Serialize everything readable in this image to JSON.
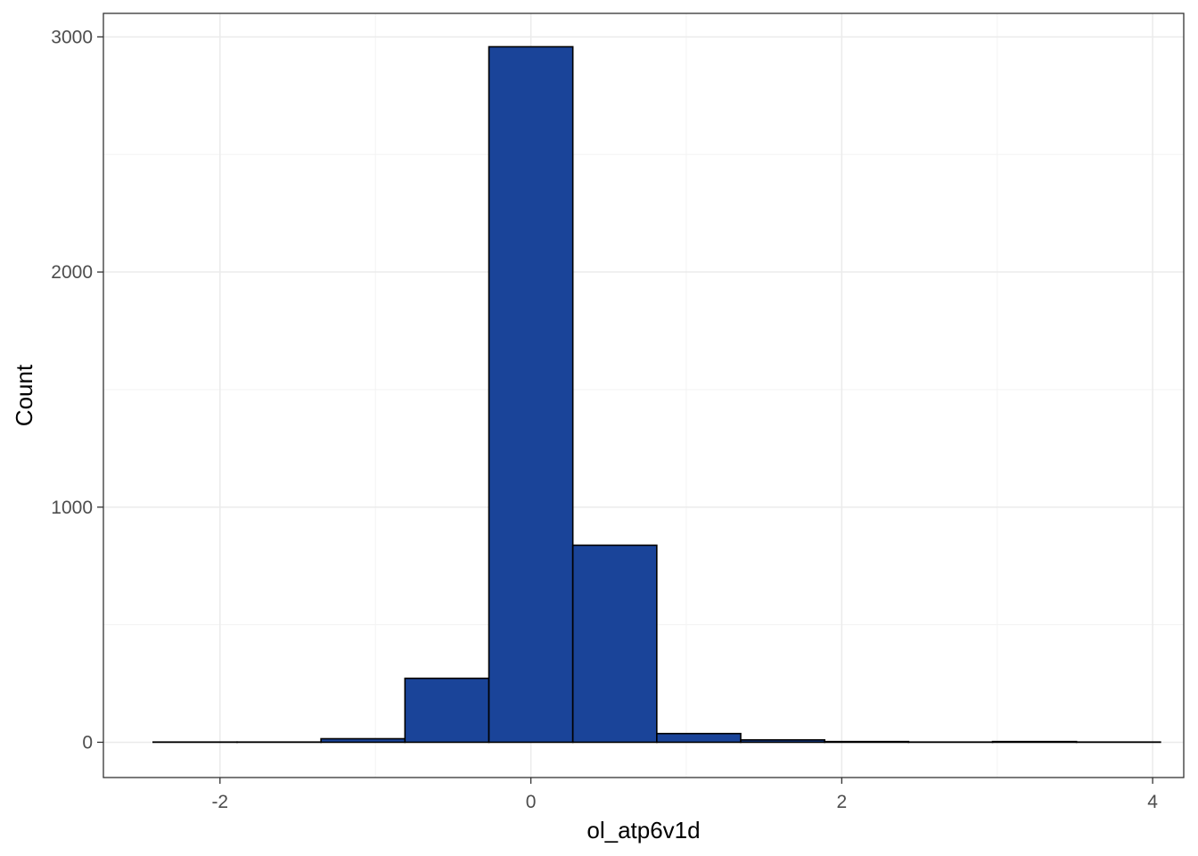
{
  "chart_data": {
    "type": "bar",
    "title": "",
    "xlabel": "ol_atp6v1d",
    "ylabel": "Count",
    "xlim": [
      -2.75,
      4.2
    ],
    "ylim": [
      -150,
      3100
    ],
    "x_ticks": [
      -2,
      0,
      2,
      4
    ],
    "x_tick_labels": [
      "-2",
      "0",
      "2",
      "4"
    ],
    "y_ticks": [
      0,
      1000,
      2000,
      3000
    ],
    "y_tick_labels": [
      "0",
      "1000",
      "2000",
      "3000"
    ],
    "grid": true,
    "bins": [
      {
        "x0": -2.43,
        "x1": -1.89,
        "count": 1
      },
      {
        "x0": -1.89,
        "x1": -1.35,
        "count": 1
      },
      {
        "x0": -1.35,
        "x1": -0.81,
        "count": 15
      },
      {
        "x0": -0.81,
        "x1": -0.27,
        "count": 272
      },
      {
        "x0": -0.27,
        "x1": 0.27,
        "count": 2958
      },
      {
        "x0": 0.27,
        "x1": 0.81,
        "count": 838
      },
      {
        "x0": 0.81,
        "x1": 1.35,
        "count": 37
      },
      {
        "x0": 1.35,
        "x1": 1.89,
        "count": 10
      },
      {
        "x0": 1.89,
        "x1": 2.43,
        "count": 3
      },
      {
        "x0": 2.43,
        "x1": 2.97,
        "count": 1
      },
      {
        "x0": 2.97,
        "x1": 3.51,
        "count": 3
      },
      {
        "x0": 3.51,
        "x1": 4.05,
        "count": 1
      }
    ],
    "colors": {
      "bar_fill": "#1a4499",
      "bar_stroke": "#000000",
      "grid_major": "#ebebeb",
      "grid_minor": "#f3f3f3",
      "panel_border": "#333333",
      "tick_text": "#4d4d4d",
      "background": "#ffffff"
    }
  }
}
